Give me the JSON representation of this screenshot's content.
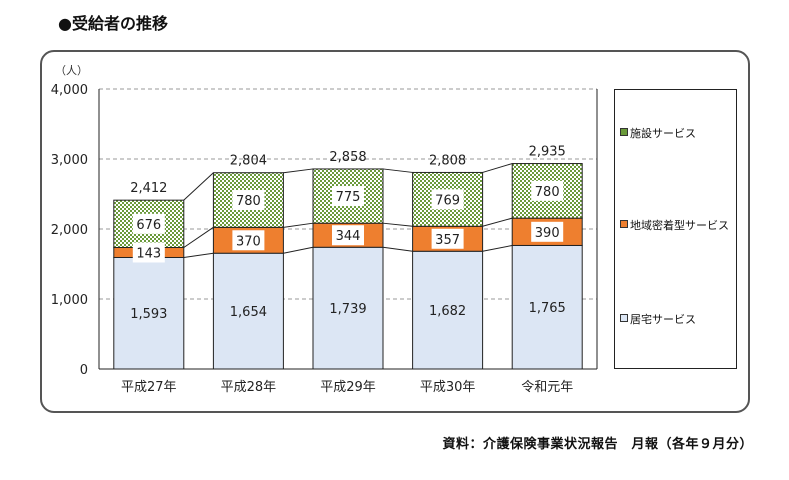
{
  "title": "●受給者の推移",
  "source": "資料：介護保険事業状況報告　月報（各年９月分）",
  "chart_data": {
    "type": "bar",
    "stacked": true,
    "ylabel": "（人）",
    "ylim": [
      0,
      4000
    ],
    "yticks": [
      "0",
      "1,000",
      "2,000",
      "3,000",
      "4,000"
    ],
    "ytick_values": [
      0,
      1000,
      2000,
      3000,
      4000
    ],
    "grid": true,
    "legend_position": "right",
    "categories": [
      "平成27年",
      "平成28年",
      "平成29年",
      "平成30年",
      "令和元年"
    ],
    "series": [
      {
        "name": "居宅サービス",
        "values": [
          1593,
          1654,
          1739,
          1682,
          1765
        ],
        "labels": [
          "1,593",
          "1,654",
          "1,739",
          "1,682",
          "1,765"
        ],
        "color": "#dce6f4"
      },
      {
        "name": "地域密着型サービス",
        "values": [
          143,
          370,
          344,
          357,
          390
        ],
        "labels": [
          "143",
          "370",
          "344",
          "357",
          "390"
        ],
        "color": "#ee7f2f"
      },
      {
        "name": "施設サービス",
        "values": [
          676,
          780,
          775,
          769,
          780
        ],
        "labels": [
          "676",
          "780",
          "775",
          "769",
          "780"
        ],
        "color": "#6a9a3a"
      }
    ],
    "totals": [
      2412,
      2804,
      2858,
      2808,
      2935
    ],
    "total_labels": [
      "2,412",
      "2,804",
      "2,858",
      "2,808",
      "2,935"
    ]
  }
}
